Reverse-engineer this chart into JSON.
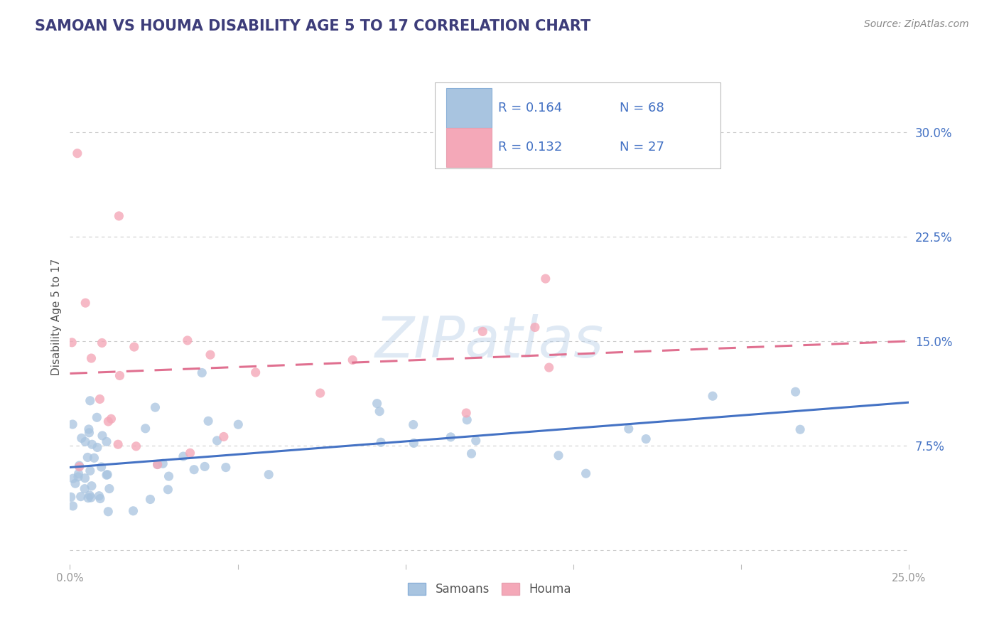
{
  "title": "SAMOAN VS HOUMA DISABILITY AGE 5 TO 17 CORRELATION CHART",
  "source_text": "Source: ZipAtlas.com",
  "ylabel": "Disability Age 5 to 17",
  "watermark": "ZIPatlas",
  "xlim": [
    0.0,
    0.25
  ],
  "ylim": [
    -0.01,
    0.345
  ],
  "right_yticks": [
    0.0,
    0.075,
    0.15,
    0.225,
    0.3
  ],
  "right_yticklabels": [
    "",
    "7.5%",
    "15.0%",
    "22.5%",
    "30.0%"
  ],
  "bottom_xticks": [
    0.0,
    0.05,
    0.1,
    0.15,
    0.2,
    0.25
  ],
  "bottom_xticklabels": [
    "0.0%",
    "",
    "",
    "",
    "",
    "25.0%"
  ],
  "title_color": "#3d3d7a",
  "title_fontsize": 15,
  "axis_label_color": "#555555",
  "tick_color": "#999999",
  "grid_color": "#cccccc",
  "samoans_color": "#a8c4e0",
  "houma_color": "#f4a8b8",
  "samoans_line_color": "#4472c4",
  "houma_line_color": "#e07090",
  "legend_R1": "R = 0.164",
  "legend_N1": "N = 68",
  "legend_R2": "R = 0.132",
  "legend_N2": "N = 27",
  "legend_label1": "Samoans",
  "legend_label2": "Houma"
}
